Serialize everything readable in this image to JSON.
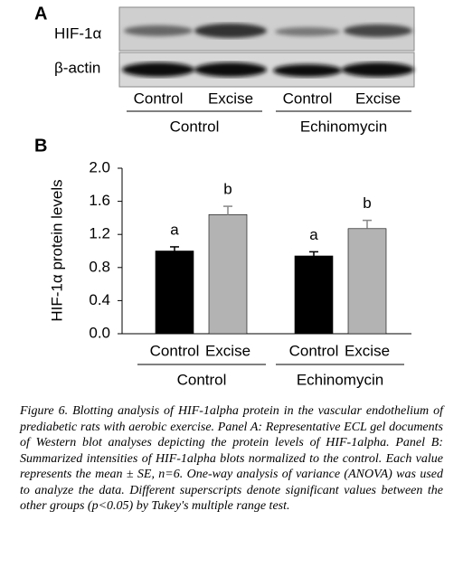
{
  "panel_a": {
    "label": "A",
    "rows": [
      "HIF-1α",
      "β-actin"
    ],
    "lanes": [
      "Control",
      "Excise",
      "Control",
      "Excise"
    ],
    "groups": [
      "Control",
      "Echinomycin"
    ]
  },
  "chart_data": {
    "type": "bar",
    "panel_label": "B",
    "ylabel": "HIF-1α protein levels",
    "categories": [
      "Control",
      "Excise",
      "Control",
      "Excise"
    ],
    "groups": [
      "Control",
      "Echinomycin"
    ],
    "values": [
      1.0,
      1.44,
      0.94,
      1.27
    ],
    "errors": [
      0.05,
      0.1,
      0.05,
      0.1
    ],
    "colors": [
      "#000000",
      "#b3b3b3",
      "#000000",
      "#b3b3b3"
    ],
    "annotations": [
      "a",
      "b",
      "a",
      "b"
    ],
    "ylim": [
      0,
      2
    ],
    "yticks": [
      {
        "value": 0,
        "label": "0.0"
      },
      0.4,
      0.8,
      1.2,
      1.6,
      {
        "value": 2,
        "label": "2.0"
      }
    ]
  },
  "caption": {
    "label": "Figure 6.",
    "text": "Blotting analysis of HIF-1alpha protein in the vascular endothelium of prediabetic rats with aerobic exercise. Panel A: Representative ECL gel documents of Western blot analyses depicting the protein levels of HIF-1alpha. Panel B: Summarized intensities of HIF-1alpha blots normalized to the control. Each value represents the mean ± SE, n=6. One-way analysis of variance (ANOVA) was used to analyze the data. Different superscripts denote significant values between the other groups (p<0.05) by Tukey's multiple range test."
  }
}
